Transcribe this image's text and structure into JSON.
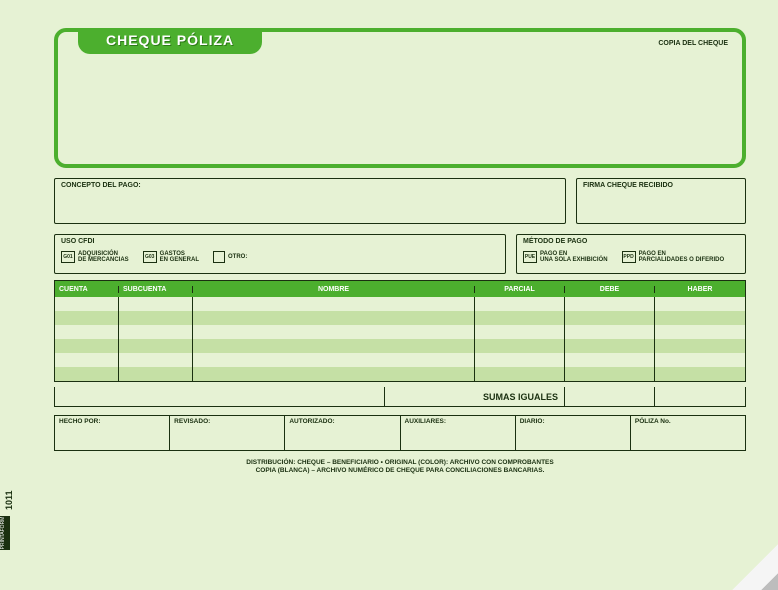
{
  "header": {
    "title": "CHEQUE PÓLIZA",
    "copy_label": "COPIA DEL CHEQUE"
  },
  "concepto": {
    "label": "CONCEPTO DEL PAGO:"
  },
  "firma": {
    "label": "FIRMA CHEQUE RECIBIDO"
  },
  "uso_cfdi": {
    "label": "USO CFDI",
    "options": [
      {
        "code": "G01",
        "text": "ADQUISICIÓN\nDE MERCANCIAS"
      },
      {
        "code": "G03",
        "text": "GASTOS\nEN GENERAL"
      },
      {
        "code": "",
        "text": "OTRO:"
      }
    ]
  },
  "metodo_pago": {
    "label": "MÉTODO DE PAGO",
    "options": [
      {
        "code": "PUE",
        "text": "PAGO EN\nUNA SOLA EXHIBICIÓN"
      },
      {
        "code": "PPD",
        "text": "PAGO EN\nPARCIALIDADES O DIFERIDO"
      }
    ]
  },
  "ledger": {
    "columns": [
      "CUENTA",
      "SUBCUENTA",
      "NOMBRE",
      "PARCIAL",
      "DEBE",
      "HABER"
    ],
    "sumas_label": "SUMAS IGUALES"
  },
  "signatures": [
    "HECHO POR:",
    "REVISADO:",
    "AUTORIZADO:",
    "AUXILIARES:",
    "DIARIO:",
    "PÓLIZA No."
  ],
  "distribution": {
    "label": "DISTRIBUCIÓN:",
    "line1": "CHEQUE – BENEFICIARIO • ORIGINAL (COLOR): ARCHIVO CON COMPROBANTES",
    "line2": "COPIA (BLANCA) – ARCHIVO NUMÉRICO DE CHEQUE PARA CONCILIACIONES BANCARIAS."
  },
  "side": {
    "code": "1011",
    "brand": "PRINTAFORM"
  },
  "colors": {
    "paper": "#e6f2d4",
    "accent": "#4caf2e",
    "alt_row": "#c5e0a5",
    "ink": "#1a3010"
  }
}
